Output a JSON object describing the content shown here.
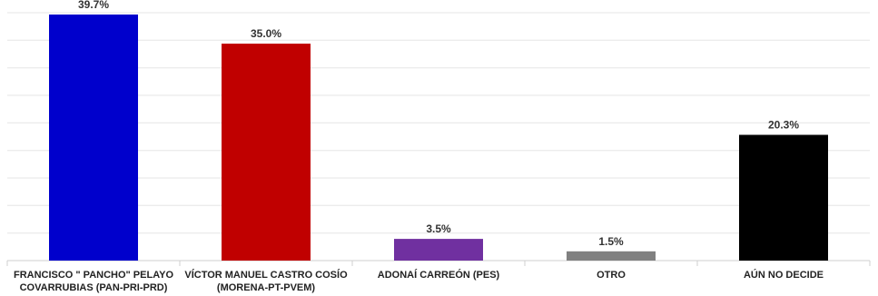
{
  "chart_data": {
    "type": "bar",
    "categories": [
      [
        "FRANCISCO \" PANCHO\" PELAYO",
        "COVARRUBIAS  (PAN-PRI-PRD)"
      ],
      [
        "VÍCTOR MANUEL CASTRO COSÍO",
        "(MORENA-PT-PVEM)"
      ],
      [
        "ADONAÍ CARREÓN  (PES)"
      ],
      [
        "OTRO"
      ],
      [
        "AÚN NO DECIDE"
      ]
    ],
    "values": [
      39.7,
      35.0,
      3.5,
      1.5,
      20.3
    ],
    "data_labels": [
      "39.7%",
      "35.0%",
      "3.5%",
      "1.5%",
      "20.3%"
    ],
    "colors": [
      "#0000cc",
      "#c00000",
      "#7030a0",
      "#808080",
      "#000000"
    ],
    "ylim": [
      0,
      40
    ],
    "grid": true,
    "legend": "none",
    "title": "",
    "xlabel": "",
    "ylabel": ""
  }
}
